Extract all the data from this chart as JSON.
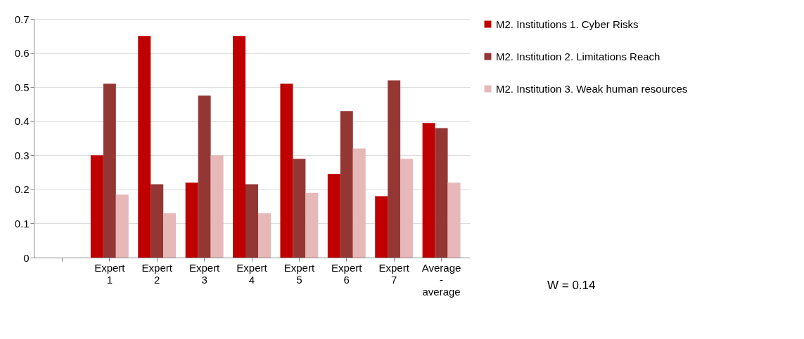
{
  "chart_data": {
    "type": "bar",
    "categories": [
      null,
      "Expert 1",
      "Expert 2",
      "Expert 3",
      "Expert 4",
      "Expert 5",
      "Expert 6",
      "Expert 7",
      "Average - average"
    ],
    "series": [
      {
        "name": "M2. Institutions 1. Cyber Risks",
        "color": "#c00000",
        "values": [
          0,
          0.3,
          0.65,
          0.22,
          0.65,
          0.51,
          0.245,
          0.18,
          0.395
        ]
      },
      {
        "name": "M2. Institution 2. Limitations Reach",
        "color": "#943634",
        "values": [
          0,
          0.51,
          0.215,
          0.475,
          0.215,
          0.29,
          0.43,
          0.52,
          0.38
        ]
      },
      {
        "name": "M2. Institution 3. Weak human resources",
        "color": "#e6b9b8",
        "values": [
          0,
          0.185,
          0.13,
          0.3,
          0.13,
          0.19,
          0.32,
          0.29,
          0.22
        ]
      }
    ],
    "ylim": [
      0,
      0.7
    ],
    "yticks": [
      0,
      0.1,
      0.2,
      0.3,
      0.4,
      0.5,
      0.6,
      0.7
    ],
    "grid": "y",
    "legend": "right",
    "annotations": [
      "W = 0.14"
    ]
  }
}
